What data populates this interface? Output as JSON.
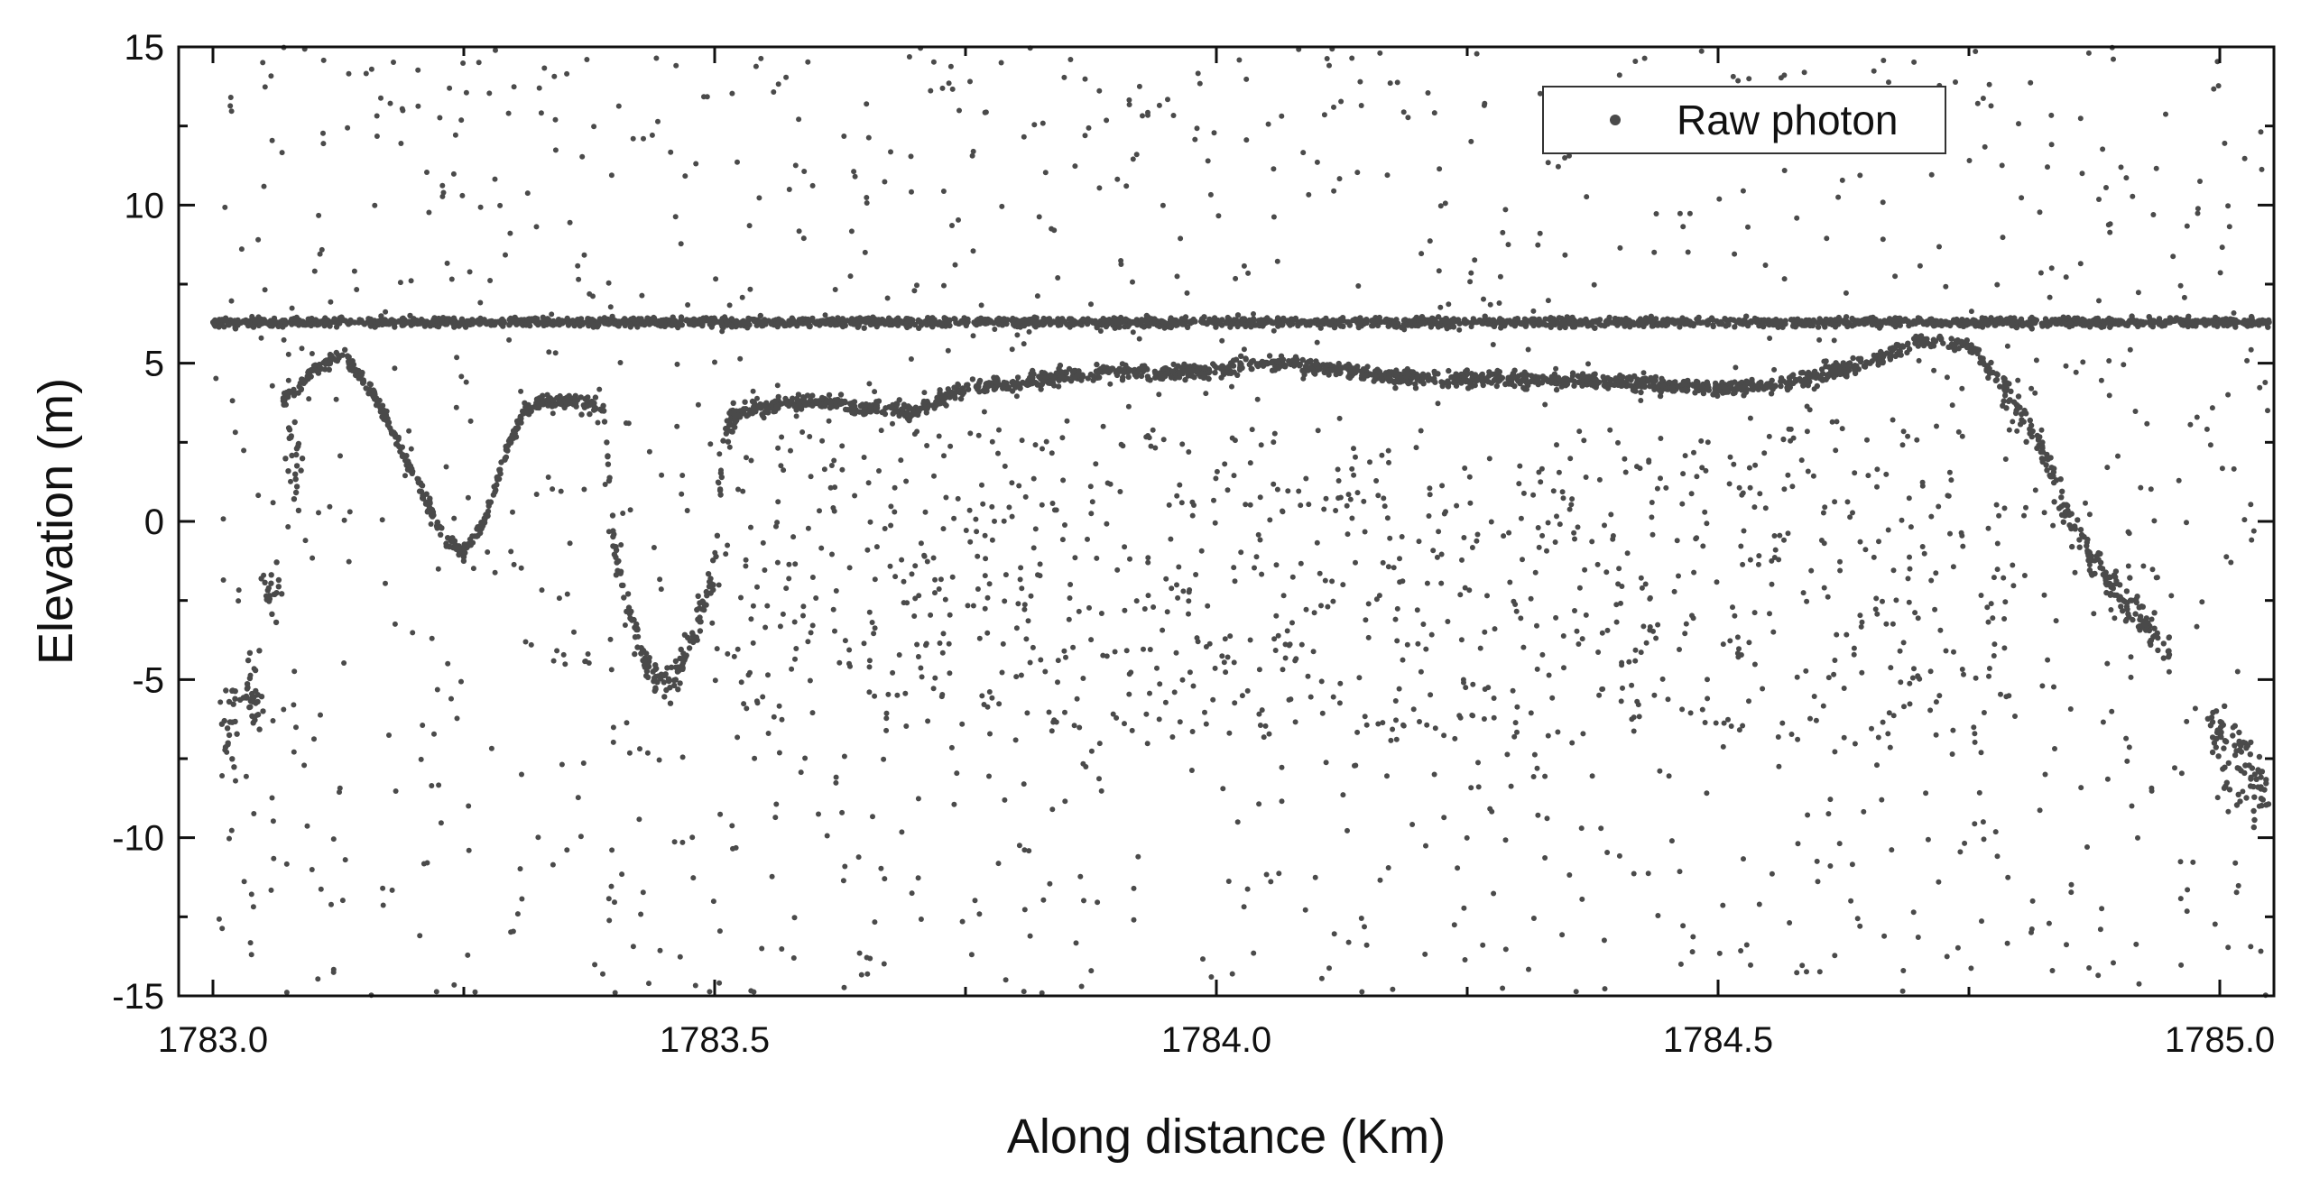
{
  "chart_data": {
    "type": "scatter",
    "title": "",
    "xlabel": "Along distance (Km)",
    "ylabel": "Elevation (m)",
    "xlim": [
      1783.0,
      1785.05
    ],
    "ylim": [
      -15,
      15
    ],
    "x_ticks": [
      1783.0,
      1783.5,
      1784.0,
      1784.5,
      1785.0
    ],
    "x_tick_labels": [
      "1783.0",
      "1783.5",
      "1784.0",
      "1784.5",
      "1785.0"
    ],
    "y_ticks": [
      -15,
      -10,
      -5,
      0,
      5,
      10,
      15
    ],
    "y_tick_labels": [
      "-15",
      "-10",
      "-5",
      "0",
      "5",
      "10",
      "15"
    ],
    "grid": false,
    "legend_position": "top-right",
    "colors": {
      "points": "#4a4a4a",
      "axis": "#111111"
    },
    "series": [
      {
        "name": "Raw photon",
        "marker": "circle",
        "components": {
          "water_surface": {
            "x_range": [
              1783.0,
              1785.05
            ],
            "y": 6.3
          },
          "bottom_profile": {
            "x": [
              1783.07,
              1783.1,
              1783.13,
              1783.16,
              1783.2,
              1783.23,
              1783.25,
              1783.27,
              1783.29,
              1783.31,
              1783.33,
              1783.36,
              1783.39,
              1783.4,
              1783.42,
              1783.44,
              1783.46,
              1783.48,
              1783.5,
              1783.51,
              1783.53,
              1783.6,
              1783.65,
              1783.7,
              1783.75,
              1783.8,
              1783.85,
              1783.9,
              1783.95,
              1784.0,
              1784.05,
              1784.1,
              1784.2,
              1784.3,
              1784.4,
              1784.5,
              1784.55,
              1784.6,
              1784.65,
              1784.7,
              1784.75,
              1784.78,
              1784.82,
              1784.85,
              1784.88,
              1784.92,
              1784.95
            ],
            "y": [
              3.8,
              4.8,
              5.3,
              4.0,
              1.5,
              -0.5,
              -1.0,
              0.0,
              2.0,
              3.5,
              3.8,
              3.8,
              3.6,
              -1.0,
              -3.5,
              -5.0,
              -5.0,
              -3.5,
              -1.5,
              3.0,
              3.5,
              3.8,
              3.6,
              3.5,
              4.2,
              4.4,
              4.6,
              4.8,
              4.7,
              4.8,
              5.0,
              4.9,
              4.5,
              4.5,
              4.4,
              4.2,
              4.3,
              4.6,
              5.0,
              5.7,
              5.6,
              4.5,
              2.5,
              0.0,
              -1.5,
              -3.0,
              -4.2
            ]
          },
          "left_edge_noise": {
            "x": [
              1783.02,
              1783.04,
              1783.06,
              1783.08
            ],
            "y": [
              -6.5,
              -5.5,
              -2.0,
              2.0
            ]
          },
          "right_edge_noise": {
            "x": [
              1785.0,
              1785.02,
              1785.04
            ],
            "y": [
              -7.0,
              -7.5,
              -8.5
            ]
          },
          "background_noise": {
            "x_range": [
              1783.0,
              1785.05
            ],
            "y_range": [
              -15,
              15
            ]
          }
        }
      }
    ]
  }
}
